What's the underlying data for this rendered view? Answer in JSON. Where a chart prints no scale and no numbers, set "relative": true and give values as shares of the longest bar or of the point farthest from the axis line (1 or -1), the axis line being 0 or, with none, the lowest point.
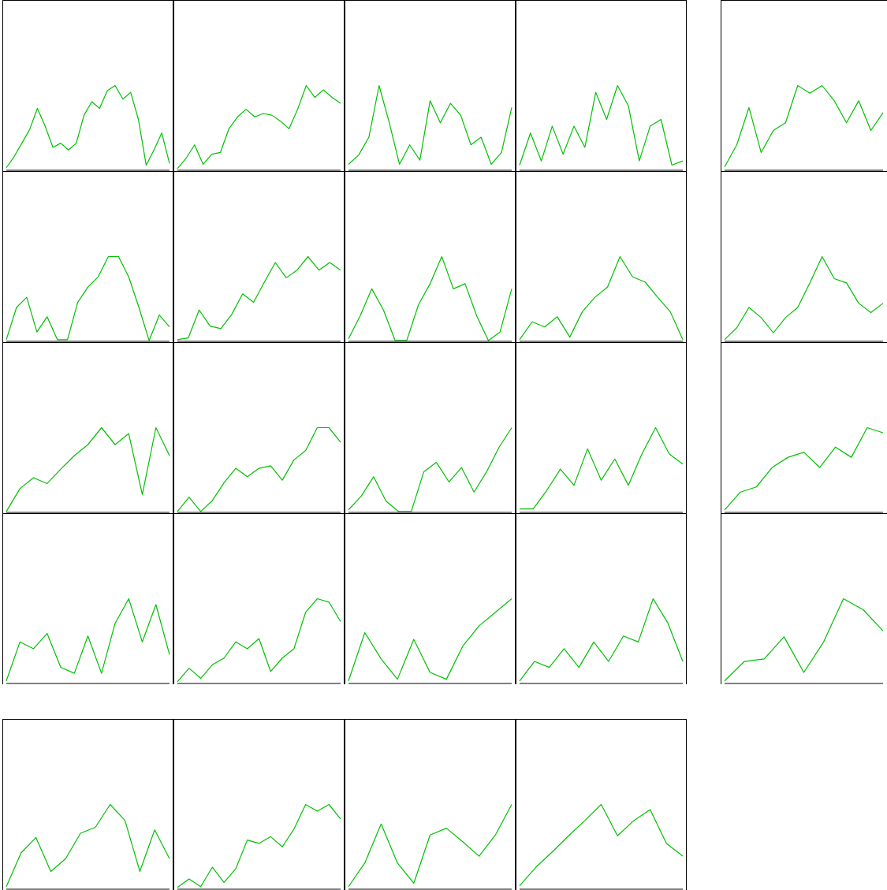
{
  "chart_data": [
    {
      "type": "line",
      "relative": true,
      "categories": [
        null,
        null,
        null,
        null,
        null,
        null,
        null,
        null,
        null,
        null,
        null,
        null,
        null,
        null,
        null,
        null,
        null,
        null,
        null,
        null,
        null,
        null
      ],
      "series": [
        {
          "color": "#00c000",
          "values": [
            0.03,
            0.16,
            0.32,
            0.48,
            0.73,
            0.52,
            0.27,
            0.32,
            0.24,
            0.32,
            0.65,
            0.81,
            0.73,
            0.94,
            1,
            0.84,
            0.92,
            0.6,
            0.06,
            0.24,
            0.44,
            0.08
          ]
        }
      ]
    },
    {
      "type": "line",
      "relative": true,
      "categories": [
        null,
        null,
        null,
        null,
        null,
        null,
        null,
        null,
        null,
        null,
        null,
        null,
        null,
        null,
        null,
        null,
        null,
        null,
        null,
        null
      ],
      "series": [
        {
          "color": "#00c000",
          "values": [
            0.02,
            0.14,
            0.3,
            0.07,
            0.19,
            0.21,
            0.49,
            0.63,
            0.72,
            0.63,
            0.67,
            0.65,
            0.58,
            0.49,
            0.72,
            1,
            0.86,
            0.95,
            0.86,
            0.79
          ]
        }
      ]
    },
    {
      "type": "line",
      "relative": true,
      "categories": [
        null,
        null,
        null,
        null,
        null,
        null,
        null,
        null,
        null,
        null,
        null,
        null,
        null,
        null,
        null,
        null,
        null
      ],
      "series": [
        {
          "color": "#00c000",
          "values": [
            0.07,
            0.18,
            0.39,
            1,
            0.56,
            0.07,
            0.3,
            0.12,
            0.82,
            0.56,
            0.79,
            0.65,
            0.3,
            0.39,
            0.07,
            0.21,
            0.74
          ]
        }
      ]
    },
    {
      "type": "line",
      "relative": true,
      "categories": [
        null,
        null,
        null,
        null,
        null,
        null,
        null,
        null,
        null,
        null,
        null,
        null,
        null,
        null,
        null,
        null
      ],
      "series": [
        {
          "color": "#00c000",
          "values": [
            0.06,
            0.44,
            0.11,
            0.52,
            0.19,
            0.52,
            0.27,
            0.92,
            0.6,
            1,
            0.76,
            0.11,
            0.52,
            0.6,
            0.06,
            0.11
          ]
        }
      ]
    },
    {
      "type": "line",
      "relative": true,
      "categories": [
        null,
        null,
        null,
        null,
        null,
        null,
        null,
        null,
        null,
        null,
        null,
        null,
        null,
        null
      ],
      "series": [
        {
          "color": "#00c000",
          "values": [
            0.04,
            0.3,
            0.74,
            0.21,
            0.47,
            0.56,
            1,
            0.91,
            1,
            0.82,
            0.56,
            0.82,
            0.47,
            0.68
          ]
        }
      ]
    },
    {
      "type": "line",
      "relative": true,
      "categories": [
        null,
        null,
        null,
        null,
        null,
        null,
        null,
        null,
        null,
        null,
        null,
        null,
        null,
        null,
        null,
        null,
        null
      ],
      "series": [
        {
          "color": "#00c000",
          "values": [
            0.02,
            0.4,
            0.52,
            0.11,
            0.29,
            0.02,
            0.02,
            0.46,
            0.64,
            0.76,
            1,
            1,
            0.76,
            0.4,
            0.01,
            0.31,
            0.17
          ]
        }
      ]
    },
    {
      "type": "line",
      "relative": true,
      "categories": [
        null,
        null,
        null,
        null,
        null,
        null,
        null,
        null,
        null,
        null,
        null,
        null,
        null,
        null,
        null,
        null
      ],
      "series": [
        {
          "color": "#00c000",
          "values": [
            0.02,
            0.04,
            0.37,
            0.18,
            0.15,
            0.32,
            0.56,
            0.46,
            0.7,
            0.93,
            0.75,
            0.84,
            1,
            0.84,
            0.93,
            0.84
          ]
        }
      ]
    },
    {
      "type": "line",
      "relative": true,
      "categories": [
        null,
        null,
        null,
        null,
        null,
        null,
        null,
        null,
        null,
        null,
        null,
        null,
        null,
        null,
        null
      ],
      "series": [
        {
          "color": "#00c000",
          "values": [
            0.03,
            0.3,
            0.62,
            0.37,
            0.01,
            0.01,
            0.43,
            0.68,
            1,
            0.62,
            0.68,
            0.3,
            0.01,
            0.11,
            0.62
          ]
        }
      ]
    },
    {
      "type": "line",
      "relative": true,
      "categories": [
        null,
        null,
        null,
        null,
        null,
        null,
        null,
        null,
        null,
        null,
        null,
        null,
        null,
        null
      ],
      "series": [
        {
          "color": "#00c000",
          "values": [
            0.02,
            0.23,
            0.17,
            0.29,
            0.05,
            0.35,
            0.52,
            0.64,
            1,
            0.76,
            0.7,
            0.52,
            0.35,
            0.02
          ]
        }
      ]
    },
    {
      "type": "line",
      "relative": true,
      "categories": [
        null,
        null,
        null,
        null,
        null,
        null,
        null,
        null,
        null,
        null,
        null,
        null,
        null,
        null
      ],
      "series": [
        {
          "color": "#00c000",
          "values": [
            0.02,
            0.16,
            0.4,
            0.28,
            0.1,
            0.28,
            0.4,
            0.69,
            1,
            0.74,
            0.69,
            0.45,
            0.34,
            0.45
          ]
        }
      ]
    },
    {
      "type": "line",
      "relative": true,
      "categories": [
        null,
        null,
        null,
        null,
        null,
        null,
        null,
        null,
        null,
        null,
        null,
        null,
        null
      ],
      "series": [
        {
          "color": "#00c000",
          "values": [
            0.01,
            0.28,
            0.41,
            0.34,
            0.51,
            0.67,
            0.8,
            1,
            0.8,
            0.93,
            0.21,
            1,
            0.67
          ]
        }
      ]
    },
    {
      "type": "line",
      "relative": true,
      "categories": [
        null,
        null,
        null,
        null,
        null,
        null,
        null,
        null,
        null,
        null,
        null,
        null,
        null,
        null,
        null
      ],
      "series": [
        {
          "color": "#00c000",
          "values": [
            0.01,
            0.18,
            0.01,
            0.14,
            0.35,
            0.52,
            0.42,
            0.52,
            0.55,
            0.38,
            0.62,
            0.73,
            1,
            1,
            0.83
          ]
        }
      ]
    },
    {
      "type": "line",
      "relative": true,
      "categories": [
        null,
        null,
        null,
        null,
        null,
        null,
        null,
        null,
        null,
        null,
        null,
        null,
        null,
        null
      ],
      "series": [
        {
          "color": "#00c000",
          "values": [
            0.03,
            0.19,
            0.42,
            0.13,
            0.01,
            0.01,
            0.48,
            0.59,
            0.36,
            0.53,
            0.24,
            0.48,
            0.77,
            1
          ]
        }
      ]
    },
    {
      "type": "line",
      "relative": true,
      "categories": [
        null,
        null,
        null,
        null,
        null,
        null,
        null,
        null,
        null,
        null,
        null,
        null,
        null
      ],
      "series": [
        {
          "color": "#00c000",
          "values": [
            0.04,
            0.04,
            0.26,
            0.51,
            0.32,
            0.75,
            0.38,
            0.63,
            0.32,
            0.69,
            1,
            0.69,
            0.57
          ]
        }
      ]
    },
    {
      "type": "line",
      "relative": true,
      "categories": [
        null,
        null,
        null,
        null,
        null,
        null,
        null,
        null,
        null,
        null,
        null
      ],
      "series": [
        {
          "color": "#00c000",
          "values": [
            0.03,
            0.24,
            0.3,
            0.53,
            0.65,
            0.71,
            0.53,
            0.77,
            0.65,
            1,
            0.94
          ]
        }
      ]
    },
    {
      "type": "line",
      "relative": true,
      "categories": [
        null,
        null,
        null,
        null,
        null,
        null,
        null,
        null,
        null,
        null,
        null,
        null,
        null
      ],
      "series": [
        {
          "color": "#00c000",
          "values": [
            0.03,
            0.49,
            0.41,
            0.59,
            0.19,
            0.12,
            0.56,
            0.12,
            0.71,
            1,
            0.49,
            0.93,
            0.34
          ]
        }
      ]
    },
    {
      "type": "line",
      "relative": true,
      "categories": [
        null,
        null,
        null,
        null,
        null,
        null,
        null,
        null,
        null,
        null,
        null,
        null,
        null,
        null,
        null
      ],
      "series": [
        {
          "color": "#00c000",
          "values": [
            0.02,
            0.18,
            0.06,
            0.22,
            0.3,
            0.49,
            0.41,
            0.53,
            0.14,
            0.3,
            0.41,
            0.84,
            1,
            0.96,
            0.73
          ]
        }
      ]
    },
    {
      "type": "line",
      "relative": true,
      "categories": [
        null,
        null,
        null,
        null,
        null,
        null,
        null,
        null,
        null,
        null,
        null
      ],
      "series": [
        {
          "color": "#00c000",
          "values": [
            0.03,
            0.6,
            0.29,
            0.05,
            0.52,
            0.13,
            0.05,
            0.44,
            0.68,
            0.84,
            1
          ]
        }
      ]
    },
    {
      "type": "line",
      "relative": true,
      "categories": [
        null,
        null,
        null,
        null,
        null,
        null,
        null,
        null,
        null,
        null,
        null,
        null
      ],
      "series": [
        {
          "color": "#00c000",
          "values": [
            0.03,
            0.26,
            0.19,
            0.41,
            0.19,
            0.49,
            0.26,
            0.56,
            0.49,
            1,
            0.71,
            0.26
          ]
        }
      ]
    },
    {
      "type": "line",
      "relative": true,
      "categories": [
        null,
        null,
        null,
        null,
        null,
        null,
        null,
        null,
        null
      ],
      "series": [
        {
          "color": "#00c000",
          "values": [
            0.03,
            0.26,
            0.29,
            0.55,
            0.13,
            0.49,
            1,
            0.87,
            0.62
          ]
        }
      ]
    },
    {
      "type": "line",
      "relative": true,
      "categories": [
        null,
        null,
        null,
        null,
        null,
        null,
        null,
        null,
        null,
        null,
        null,
        null
      ],
      "series": [
        {
          "color": "#00c000",
          "values": [
            0.03,
            0.43,
            0.61,
            0.21,
            0.36,
            0.66,
            0.73,
            1,
            0.81,
            0.21,
            0.7,
            0.36
          ]
        }
      ]
    },
    {
      "type": "line",
      "relative": true,
      "categories": [
        null,
        null,
        null,
        null,
        null,
        null,
        null,
        null,
        null,
        null,
        null,
        null,
        null,
        null,
        null
      ],
      "series": [
        {
          "color": "#00c000",
          "values": [
            0.02,
            0.12,
            0.03,
            0.26,
            0.08,
            0.24,
            0.58,
            0.54,
            0.62,
            0.5,
            0.71,
            1,
            0.92,
            1,
            0.83
          ]
        }
      ]
    },
    {
      "type": "line",
      "relative": true,
      "categories": [
        null,
        null,
        null,
        null,
        null,
        null,
        null,
        null,
        null,
        null,
        null
      ],
      "series": [
        {
          "color": "#00c000",
          "values": [
            0.03,
            0.31,
            0.77,
            0.31,
            0.07,
            0.64,
            0.72,
            0.56,
            0.39,
            0.64,
            1
          ]
        }
      ]
    },
    {
      "type": "line",
      "relative": true,
      "categories": [
        null,
        null,
        null,
        null,
        null,
        null,
        null,
        null,
        null,
        null,
        null
      ],
      "series": [
        {
          "color": "#00c000",
          "values": [
            0.04,
            0.26,
            0.44,
            0.63,
            0.81,
            1,
            0.63,
            0.81,
            0.94,
            0.54,
            0.39
          ]
        }
      ]
    }
  ]
}
